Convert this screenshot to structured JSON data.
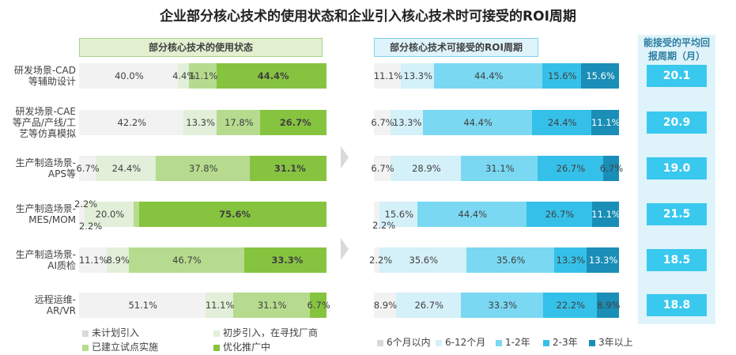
{
  "title": "企业部分核心技术的使用状态和企业引入核心技术时可接受的ROI周期",
  "chart_data": [
    {
      "type": "bar",
      "stacked": true,
      "orientation": "horizontal",
      "title": "部分核心技术的使用状态",
      "categories": [
        "研发场景-CAD等辅助设计",
        "研发场景-CAE等产品/产线/工艺等仿真模拟",
        "生产制造场景-APS等",
        "生产制造场景-MES/MOM",
        "生产制造场景-AI质检",
        "远程运维-AR/VR"
      ],
      "category_lines": [
        [
          "研发场景-CAD",
          "等辅助设计"
        ],
        [
          "研发场景-CAE",
          "等产品/产线/工",
          "艺等仿真模拟"
        ],
        [
          "生产制造场景-",
          "APS等"
        ],
        [
          "生产制造场景-",
          "MES/MOM"
        ],
        [
          "生产制造场景-",
          "AI质检"
        ],
        [
          "远程运维-",
          "AR/VR"
        ]
      ],
      "series": [
        {
          "name": "未计划引入",
          "color": "#f2f2f2",
          "values": [
            40.0,
            42.2,
            6.7,
            2.2,
            11.1,
            51.1
          ],
          "labels": [
            "40.0%",
            "42.2%",
            "6.7%",
            "2.2%",
            "11.1%",
            "51.1%"
          ]
        },
        {
          "name": "初步引入，在寻找厂商",
          "color": "#e2efd9",
          "values": [
            4.4,
            13.3,
            24.4,
            20.0,
            8.9,
            11.1
          ],
          "labels": [
            "4.4%",
            "13.3%",
            "24.4%",
            "20.0%",
            "8.9%",
            "11.1%"
          ]
        },
        {
          "name": "已建立试点实施",
          "color": "#b6db8e",
          "values": [
            11.1,
            17.8,
            37.8,
            2.2,
            46.7,
            31.1
          ],
          "labels": [
            "11.1%",
            "17.8%",
            "37.8%",
            "2.2%",
            "46.7%",
            "31.1%"
          ]
        },
        {
          "name": "优化推广中",
          "color": "#86c440",
          "values": [
            44.4,
            26.7,
            31.1,
            75.6,
            33.3,
            6.7
          ],
          "labels": [
            "44.4%",
            "26.7%",
            "31.1%",
            "75.6%",
            "33.3%",
            "6.7%"
          ]
        }
      ],
      "xlim": [
        0,
        100
      ]
    },
    {
      "type": "bar",
      "stacked": true,
      "orientation": "horizontal",
      "title": "部分核心技术可接受的ROI周期",
      "categories": [
        "研发场景-CAD等辅助设计",
        "研发场景-CAE等产品/产线/工艺等仿真模拟",
        "生产制造场景-APS等",
        "生产制造场景-MES/MOM",
        "生产制造场景-AI质检",
        "远程运维-AR/VR"
      ],
      "series": [
        {
          "name": "6个月以内",
          "color": "#f2f2f2",
          "values": [
            11.1,
            6.7,
            6.7,
            2.2,
            2.2,
            8.9
          ],
          "labels": [
            "11.1%",
            "6.7%",
            "6.7%",
            "2.2%",
            "2.2%",
            "8.9%"
          ]
        },
        {
          "name": "6-12个月",
          "color": "#d4f0f9",
          "values": [
            13.3,
            13.3,
            28.9,
            15.6,
            35.6,
            26.7
          ],
          "labels": [
            "13.3%",
            "13.3%",
            "28.9%",
            "15.6%",
            "35.6%",
            "26.7%"
          ]
        },
        {
          "name": "1-2年",
          "color": "#7ad8f2",
          "values": [
            44.4,
            44.4,
            31.1,
            44.4,
            35.6,
            33.3
          ],
          "labels": [
            "44.4%",
            "44.4%",
            "31.1%",
            "44.4%",
            "35.6%",
            "33.3%"
          ]
        },
        {
          "name": "2-3年",
          "color": "#35c0e9",
          "values": [
            15.6,
            24.4,
            26.7,
            26.7,
            13.3,
            22.2
          ],
          "labels": [
            "15.6%",
            "24.4%",
            "26.7%",
            "26.7%",
            "13.3%",
            "22.2%"
          ]
        },
        {
          "name": "3年以上",
          "color": "#1a8eb6",
          "values": [
            15.6,
            11.1,
            6.7,
            11.1,
            13.3,
            8.9
          ],
          "labels": [
            "15.6%",
            "11.1%",
            "6.7%",
            "11.1%",
            "13.3%",
            "8.9%"
          ]
        }
      ],
      "xlim": [
        0,
        100
      ]
    },
    {
      "type": "table",
      "title": "能接受的平均回报周期（月）",
      "title_lines": [
        "能接受的平均回",
        "报周期（月）"
      ],
      "values": [
        "20.1",
        "20.9",
        "19.0",
        "21.5",
        "18.5",
        "18.8"
      ]
    }
  ]
}
